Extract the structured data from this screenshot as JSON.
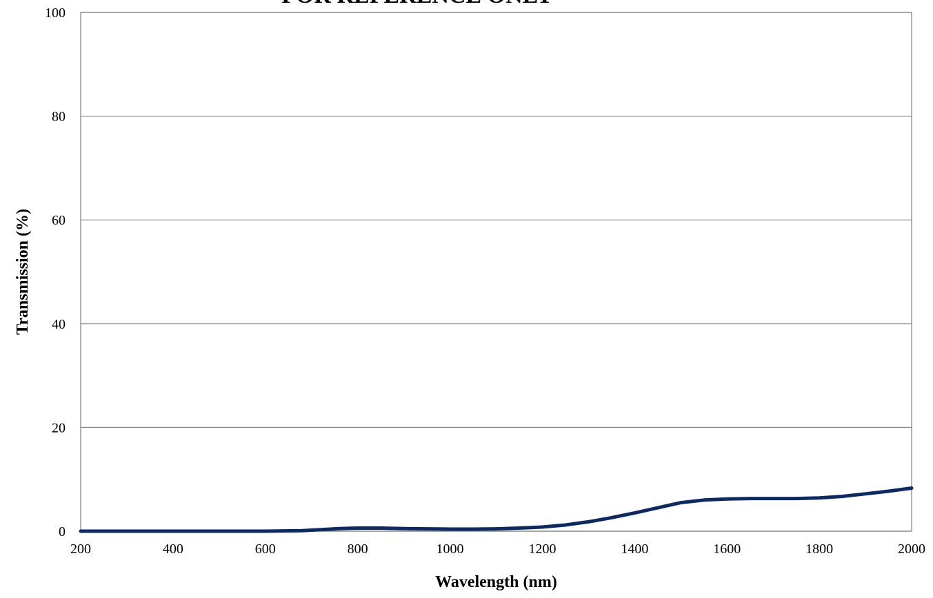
{
  "chart_data": {
    "type": "line",
    "title": "FOR REFERENCE ONLY",
    "xlabel": "Wavelength (nm)",
    "ylabel": "Transmission (%)",
    "xlim": [
      200,
      2000
    ],
    "ylim": [
      0,
      100
    ],
    "x_ticks": [
      200,
      400,
      600,
      800,
      1000,
      1200,
      1400,
      1600,
      1800,
      2000
    ],
    "y_ticks": [
      0,
      20,
      40,
      60,
      80,
      100
    ],
    "grid": "horizontal",
    "legend": "none",
    "series": [
      {
        "color": "#0b2a63",
        "x": [
          200,
          300,
          400,
          500,
          600,
          680,
          720,
          760,
          800,
          850,
          900,
          950,
          1000,
          1050,
          1100,
          1150,
          1200,
          1250,
          1300,
          1350,
          1400,
          1450,
          1500,
          1550,
          1600,
          1650,
          1700,
          1750,
          1800,
          1850,
          1900,
          1950,
          2000
        ],
        "y": [
          0,
          0,
          0,
          0,
          0,
          0.1,
          0.3,
          0.5,
          0.6,
          0.6,
          0.5,
          0.45,
          0.4,
          0.4,
          0.45,
          0.6,
          0.8,
          1.2,
          1.8,
          2.6,
          3.5,
          4.5,
          5.5,
          6.0,
          6.2,
          6.3,
          6.3,
          6.3,
          6.4,
          6.7,
          7.2,
          7.7,
          8.3
        ]
      }
    ]
  }
}
